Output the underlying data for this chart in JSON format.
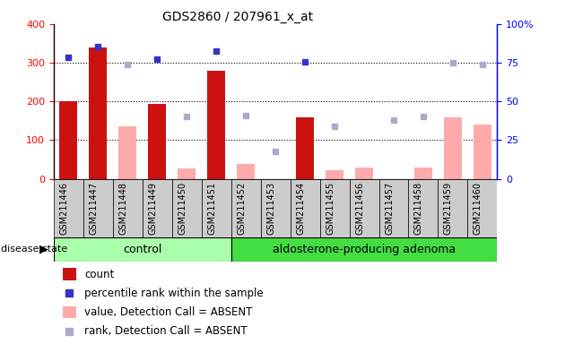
{
  "title": "GDS2860 / 207961_x_at",
  "samples": [
    "GSM211446",
    "GSM211447",
    "GSM211448",
    "GSM211449",
    "GSM211450",
    "GSM211451",
    "GSM211452",
    "GSM211453",
    "GSM211454",
    "GSM211455",
    "GSM211456",
    "GSM211457",
    "GSM211458",
    "GSM211459",
    "GSM211460"
  ],
  "count_values": [
    200,
    340,
    null,
    193,
    null,
    280,
    null,
    null,
    158,
    null,
    null,
    null,
    null,
    null,
    null
  ],
  "count_absent_values": [
    null,
    null,
    135,
    null,
    27,
    null,
    38,
    null,
    null,
    22,
    30,
    null,
    30,
    160,
    140
  ],
  "rank_values": [
    315,
    342,
    null,
    310,
    null,
    330,
    null,
    null,
    303,
    null,
    null,
    null,
    null,
    null,
    null
  ],
  "rank_absent_values": [
    null,
    null,
    295,
    null,
    162,
    null,
    163,
    72,
    null,
    136,
    null,
    152,
    162,
    300,
    295
  ],
  "control_count": 6,
  "ylim_left": [
    0,
    400
  ],
  "ylim_right": [
    0,
    100
  ],
  "yticks_left": [
    0,
    100,
    200,
    300,
    400
  ],
  "yticks_right": [
    0,
    25,
    50,
    75,
    100
  ],
  "grid_values": [
    100,
    200,
    300
  ],
  "bar_color_count": "#cc1111",
  "bar_color_absent": "#ffaaaa",
  "dot_color_rank": "#3333cc",
  "dot_color_rank_absent": "#aaaacc",
  "bg_color_xticklabels": "#cccccc",
  "control_color": "#aaffaa",
  "adenoma_color": "#44dd44",
  "control_label": "control",
  "adenoma_label": "aldosterone-producing adenoma",
  "disease_state_label": "disease state",
  "legend_items": [
    {
      "label": "count",
      "color": "#cc1111",
      "type": "bar"
    },
    {
      "label": "percentile rank within the sample",
      "color": "#3333cc",
      "type": "dot"
    },
    {
      "label": "value, Detection Call = ABSENT",
      "color": "#ffaaaa",
      "type": "bar"
    },
    {
      "label": "rank, Detection Call = ABSENT",
      "color": "#aaaacc",
      "type": "dot"
    }
  ]
}
